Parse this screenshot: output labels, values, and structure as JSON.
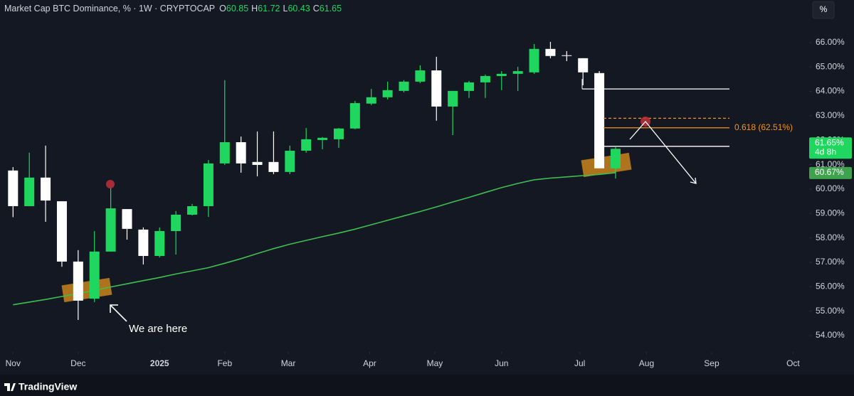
{
  "chart_data": {
    "type": "candlestick",
    "title": "Market Cap BTC Dominance, % · 1W · CRYPTOCAP",
    "ohlc_labels": [
      "O",
      "H",
      "L",
      "C"
    ],
    "x": [
      0,
      1,
      2,
      3,
      4,
      5,
      6,
      7,
      8,
      9,
      10,
      11,
      12,
      13,
      14,
      15,
      16,
      17,
      18,
      19,
      20,
      21,
      22,
      23,
      24,
      25,
      26,
      27,
      28,
      29,
      30,
      31,
      32,
      33,
      34,
      35,
      36,
      37
    ],
    "xlim": [
      -0.8,
      48.8
    ],
    "xticks": [
      {
        "value": 0,
        "label": "Nov"
      },
      {
        "value": 4,
        "label": "Dec"
      },
      {
        "value": 9,
        "label": "2025"
      },
      {
        "value": 13,
        "label": "Feb"
      },
      {
        "value": 16.9,
        "label": "Mar"
      },
      {
        "value": 21.9,
        "label": "Apr"
      },
      {
        "value": 25.9,
        "label": "May"
      },
      {
        "value": 30,
        "label": "Jun"
      },
      {
        "value": 34.8,
        "label": "Jul"
      },
      {
        "value": 38.9,
        "label": "Aug"
      },
      {
        "value": 42.9,
        "label": "Sep"
      },
      {
        "value": 47.9,
        "label": "Oct"
      }
    ],
    "ylim": [
      53.33,
      66.87
    ],
    "yticks": [
      {
        "value": 54,
        "label": "54.00%"
      },
      {
        "value": 55,
        "label": "55.00%"
      },
      {
        "value": 56,
        "label": "56.00%"
      },
      {
        "value": 57,
        "label": "57.00%"
      },
      {
        "value": 58,
        "label": "58.00%"
      },
      {
        "value": 59,
        "label": "59.00%"
      },
      {
        "value": 60,
        "label": "60.00%"
      },
      {
        "value": 61,
        "label": "61.00%"
      },
      {
        "value": 62,
        "label": "62.00%"
      },
      {
        "value": 63,
        "label": "63.00%"
      },
      {
        "value": 64,
        "label": "64.00%"
      },
      {
        "value": 65,
        "label": "65.00%"
      },
      {
        "value": 66,
        "label": "66.00%"
      }
    ],
    "grid": false,
    "candles": {
      "up_color": "#1fd65f",
      "down_color": "#ffffff",
      "open": [
        60.76,
        59.3,
        60.47,
        59.5,
        57.03,
        55.51,
        57.44,
        59.18,
        58.34,
        57.26,
        58.28,
        58.95,
        59.3,
        61.05,
        61.92,
        61.11,
        61.11,
        60.7,
        61.57,
        62.01,
        62.04,
        62.48,
        63.5,
        63.76,
        64.02,
        64.4,
        64.86,
        63.38,
        64.02,
        64.37,
        64.63,
        64.72,
        64.78,
        65.74,
        65.48,
        65.36,
        64.75,
        60.85
      ],
      "high": [
        60.9,
        61.49,
        61.78,
        59.5,
        57.5,
        58.28,
        60.03,
        59.18,
        58.43,
        58.43,
        59.1,
        59.39,
        61.19,
        64.46,
        62.15,
        62.36,
        62.36,
        61.78,
        62.5,
        62.13,
        62.5,
        63.61,
        64.1,
        64.4,
        64.46,
        65.07,
        65.42,
        64.02,
        64.43,
        64.69,
        64.83,
        65.01,
        65.94,
        66.03,
        65.65,
        65.36,
        64.83,
        61.72
      ],
      "low": [
        58.85,
        59.3,
        58.66,
        56.82,
        54.64,
        55.37,
        57.44,
        57.93,
        56.91,
        57.2,
        57.32,
        58.92,
        58.86,
        60.99,
        60.67,
        60.52,
        60.61,
        60.61,
        61.49,
        61.63,
        61.69,
        62.45,
        63.44,
        63.67,
        63.96,
        64.34,
        62.8,
        62.21,
        63.73,
        63.73,
        64.05,
        64.02,
        64.72,
        65.36,
        65.24,
        64.25,
        60.87,
        60.43
      ],
      "close": [
        59.3,
        60.47,
        59.53,
        57.03,
        55.43,
        57.44,
        59.21,
        58.37,
        57.26,
        58.28,
        58.95,
        59.3,
        61.05,
        61.92,
        61.05,
        60.99,
        60.7,
        61.57,
        62.04,
        62.1,
        62.48,
        63.52,
        63.76,
        64.05,
        64.4,
        64.86,
        63.38,
        64.02,
        64.37,
        64.63,
        64.72,
        64.83,
        65.74,
        65.45,
        65.45,
        64.78,
        60.85,
        61.65
      ]
    },
    "moving_average": {
      "color": "#3fbf4f",
      "values": [
        55.26,
        55.37,
        55.48,
        55.6,
        55.72,
        55.85,
        55.99,
        56.12,
        56.25,
        56.38,
        56.52,
        56.65,
        56.78,
        56.96,
        57.15,
        57.36,
        57.56,
        57.74,
        57.9,
        58.05,
        58.2,
        58.36,
        58.54,
        58.72,
        58.9,
        59.08,
        59.27,
        59.47,
        59.66,
        59.86,
        60.06,
        60.23,
        60.38,
        60.45,
        60.5,
        60.55,
        60.6,
        60.67
      ]
    },
    "price_tags": [
      {
        "value": 61.65,
        "label": "61.65%",
        "sub": "4d 8h",
        "color": "#1fd65f"
      },
      {
        "value": 60.67,
        "label": "60.67%",
        "color": "#3fa34d"
      }
    ],
    "levels": [
      {
        "value": 64.1,
        "color": "#ffffff",
        "style": "solid"
      },
      {
        "value": 62.9,
        "color": "#f7931a",
        "style": "dashed"
      },
      {
        "value": 62.51,
        "color": "#f7931a",
        "style": "solid",
        "label": "0.618 (62.51%)"
      },
      {
        "value": 61.75,
        "color": "#ffffff",
        "style": "solid"
      }
    ],
    "annotation": "We are here",
    "unit_button": "%",
    "brand": "TradingView"
  }
}
